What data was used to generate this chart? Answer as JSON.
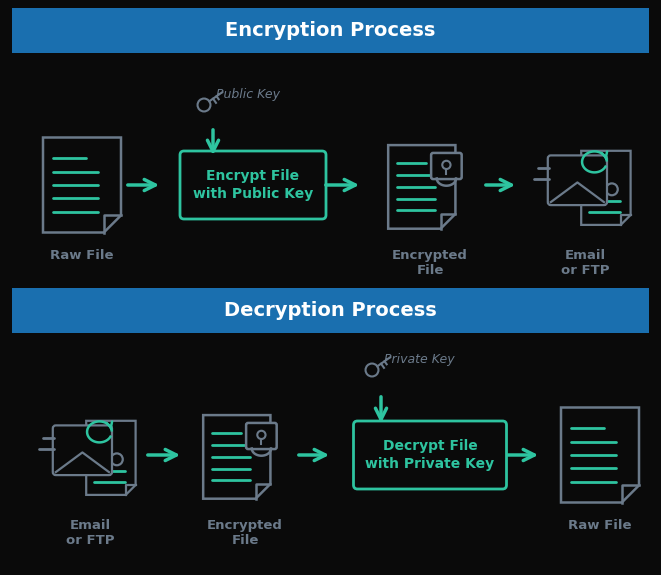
{
  "bg_color": "#0a0a0a",
  "header_color": "#1a6faf",
  "header_text_color": "#ffffff",
  "arrow_color": "#2ec4a0",
  "box_border_color": "#2ec4a0",
  "box_text_color": "#2ec4a0",
  "icon_outline_color": "#6b7a8a",
  "icon_line_color": "#2ec4a0",
  "label_color": "#6b7a8a",
  "key_color": "#6b7a8a",
  "enc_title": "Encryption Process",
  "dec_title": "Decryption Process",
  "enc_box_text": "Encrypt File\nwith Public Key",
  "dec_box_text": "Decrypt File\nwith Private Key",
  "enc_public_key_label": "Public Key",
  "dec_private_key_label": "Private Key",
  "enc_labels": [
    "Raw File",
    "Encrypted\nFile",
    "Email\nor FTP"
  ],
  "dec_labels": [
    "Email\nor FTP",
    "Encrypted\nFile",
    "Raw File"
  ],
  "figsize": [
    6.61,
    5.75
  ],
  "dpi": 100
}
